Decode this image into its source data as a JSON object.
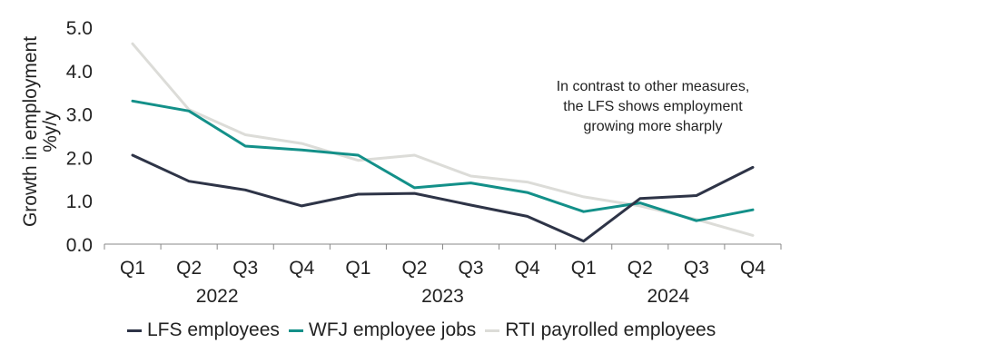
{
  "chart_data": {
    "type": "line",
    "ylabel": "Growth in employment %y/y",
    "ylabel_lines": [
      "Growth in employment",
      "%y/y"
    ],
    "ylim": [
      0,
      5
    ],
    "yticks": [
      "0.0",
      "1.0",
      "2.0",
      "3.0",
      "4.0",
      "5.0"
    ],
    "categories": [
      "Q1",
      "Q2",
      "Q3",
      "Q4",
      "Q1",
      "Q2",
      "Q3",
      "Q4",
      "Q1",
      "Q2",
      "Q3",
      "Q4"
    ],
    "years": [
      "2022",
      "2023",
      "2024"
    ],
    "annotation": [
      "In contrast to other measures,",
      "the LFS shows employment",
      "growing more sharply"
    ],
    "grid": false,
    "legend_position": "bottom",
    "series": [
      {
        "name": "LFS employees",
        "color": "#2e3447",
        "values": [
          2.05,
          1.45,
          1.25,
          0.88,
          1.15,
          1.17,
          0.9,
          0.64,
          0.07,
          1.05,
          1.12,
          1.77
        ]
      },
      {
        "name": "WFJ employee jobs",
        "color": "#139089",
        "values": [
          3.3,
          3.07,
          2.26,
          2.17,
          2.05,
          1.3,
          1.41,
          1.19,
          0.75,
          0.95,
          0.54,
          0.79
        ]
      },
      {
        "name": "RTI payrolled employees",
        "color": "#dcdcd8",
        "values": [
          4.62,
          3.1,
          2.52,
          2.32,
          1.93,
          2.05,
          1.57,
          1.43,
          1.09,
          0.88,
          0.57,
          0.2
        ]
      }
    ]
  }
}
